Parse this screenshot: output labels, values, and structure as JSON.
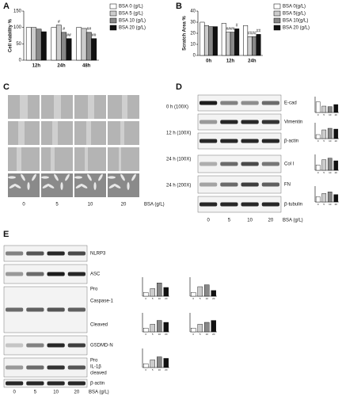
{
  "panel_labels": [
    "A",
    "B",
    "C",
    "D",
    "E"
  ],
  "chart_data": [
    {
      "type": "bar",
      "y_label": "Cell viability %",
      "categories": [
        "12h",
        "24h",
        "48h"
      ],
      "ylim": [
        0,
        150
      ],
      "yticks": [
        0,
        50,
        100,
        150
      ],
      "legend": "right",
      "series": [
        {
          "name": "BSA 0 (g/L)",
          "color": "#ffffff",
          "values": [
            100,
            100,
            100
          ],
          "markers": [
            null,
            null,
            null
          ]
        },
        {
          "name": "BSA 5 (g/L)",
          "color": "#cccccc",
          "values": [
            100,
            107,
            97
          ],
          "markers": [
            null,
            "#",
            null
          ]
        },
        {
          "name": "BSA 10 (g/L)",
          "color": "#888888",
          "values": [
            95,
            85,
            85
          ],
          "markers": [
            null,
            "#",
            "##"
          ]
        },
        {
          "name": "BSA 20 (g/L)",
          "color": "#111111",
          "values": [
            87,
            66,
            66
          ],
          "markers": [
            null,
            "##",
            "##"
          ]
        }
      ]
    },
    {
      "type": "bar",
      "y_label": "Scratch Area %",
      "categories": [
        "0h",
        "12h",
        "24h"
      ],
      "ylim": [
        0,
        40
      ],
      "yticks": [
        0,
        10,
        20,
        30,
        40
      ],
      "legend": "right",
      "series": [
        {
          "name": "BSA 0(g/L)",
          "color": "#ffffff",
          "values": [
            30,
            29,
            27
          ],
          "markers": [
            null,
            null,
            null
          ]
        },
        {
          "name": "BSA 5(g/L)",
          "color": "#cccccc",
          "values": [
            27,
            21,
            17
          ],
          "markers": [
            null,
            "##",
            "##"
          ]
        },
        {
          "name": "BSA 10(g/L)",
          "color": "#888888",
          "values": [
            26,
            21,
            17
          ],
          "markers": [
            null,
            "##",
            "##"
          ]
        },
        {
          "name": "BSA 20 (g/L)",
          "color": "#111111",
          "values": [
            26,
            24,
            19
          ],
          "markers": [
            null,
            "#",
            "##"
          ]
        }
      ]
    },
    {
      "type": "bar",
      "categories": [
        "0",
        "5",
        "10",
        "20"
      ],
      "ylim": [
        0,
        1.5
      ],
      "values": [
        1,
        0.6,
        0.55,
        0.75
      ],
      "colors": [
        "#ffffff",
        "#cccccc",
        "#888888",
        "#111111"
      ]
    },
    {
      "type": "bar",
      "categories": [
        "0",
        "5",
        "10",
        "20"
      ],
      "ylim": [
        0,
        4
      ],
      "values": [
        1,
        2.2,
        2.6,
        2.4
      ],
      "colors": [
        "#ffffff",
        "#cccccc",
        "#888888",
        "#111111"
      ]
    },
    {
      "type": "bar",
      "categories": [
        "0",
        "5",
        "10",
        "20"
      ],
      "ylim": [
        0,
        3
      ],
      "values": [
        1,
        2,
        2.3,
        1.8
      ],
      "colors": [
        "#ffffff",
        "#cccccc",
        "#888888",
        "#111111"
      ]
    },
    {
      "type": "bar",
      "categories": [
        "0",
        "5",
        "10",
        "20"
      ],
      "ylim": [
        0,
        3
      ],
      "values": [
        1,
        1.6,
        1.9,
        1.4
      ],
      "colors": [
        "#ffffff",
        "#cccccc",
        "#888888",
        "#111111"
      ]
    },
    {
      "type": "bar",
      "categories": [
        "0",
        "5",
        "10",
        "20"
      ],
      "ylim": [
        0,
        5
      ],
      "values": [
        1,
        2,
        3.5,
        2.3
      ],
      "colors": [
        "#ffffff",
        "#cccccc",
        "#888888",
        "#111111"
      ]
    },
    {
      "type": "bar",
      "categories": [
        "0",
        "5",
        "10",
        "20"
      ],
      "ylim": [
        0,
        5
      ],
      "values": [
        1,
        2.5,
        3,
        1.5
      ],
      "colors": [
        "#ffffff",
        "#cccccc",
        "#888888",
        "#111111"
      ]
    },
    {
      "type": "bar",
      "categories": [
        "0",
        "5",
        "10",
        "20"
      ],
      "ylim": [
        0,
        5
      ],
      "values": [
        1,
        2,
        3,
        2.5
      ],
      "colors": [
        "#ffffff",
        "#cccccc",
        "#888888",
        "#111111"
      ]
    },
    {
      "type": "bar",
      "categories": [
        "0",
        "5",
        "10",
        "20"
      ],
      "ylim": [
        0,
        5
      ],
      "values": [
        1,
        2,
        2.5,
        3
      ],
      "colors": [
        "#ffffff",
        "#cccccc",
        "#888888",
        "#111111"
      ]
    },
    {
      "type": "bar",
      "categories": [
        "0",
        "5",
        "10",
        "20"
      ],
      "ylim": [
        0,
        5
      ],
      "values": [
        1,
        2,
        2.8,
        2.4
      ],
      "colors": [
        "#ffffff",
        "#cccccc",
        "#888888",
        "#111111"
      ]
    }
  ],
  "micrographs": {
    "rows": [
      "0 h (100X)",
      "12 h (100X)",
      "24 h (100X)",
      "24 h (200X)"
    ],
    "columns": [
      "0",
      "5",
      "10",
      "20"
    ],
    "unit": "BSA (g/L)"
  },
  "blots_d": {
    "labels": [
      "E-cad",
      "Vimentin",
      "β-actin",
      "Col I",
      "FN",
      "β-tubulin"
    ],
    "columns": [
      "0",
      "5",
      "10",
      "20"
    ],
    "unit": "BSA (g/L)"
  },
  "blots_e": {
    "labels": [
      "NLRP3",
      "ASC",
      "Pro",
      "Caspase-1",
      "Cleaved",
      "GSDMD-N",
      "Pro",
      "IL-1β",
      "cleaved",
      "β-actin"
    ],
    "columns": [
      "0",
      "5",
      "10",
      "20"
    ],
    "unit": "BSA (g/L)"
  }
}
